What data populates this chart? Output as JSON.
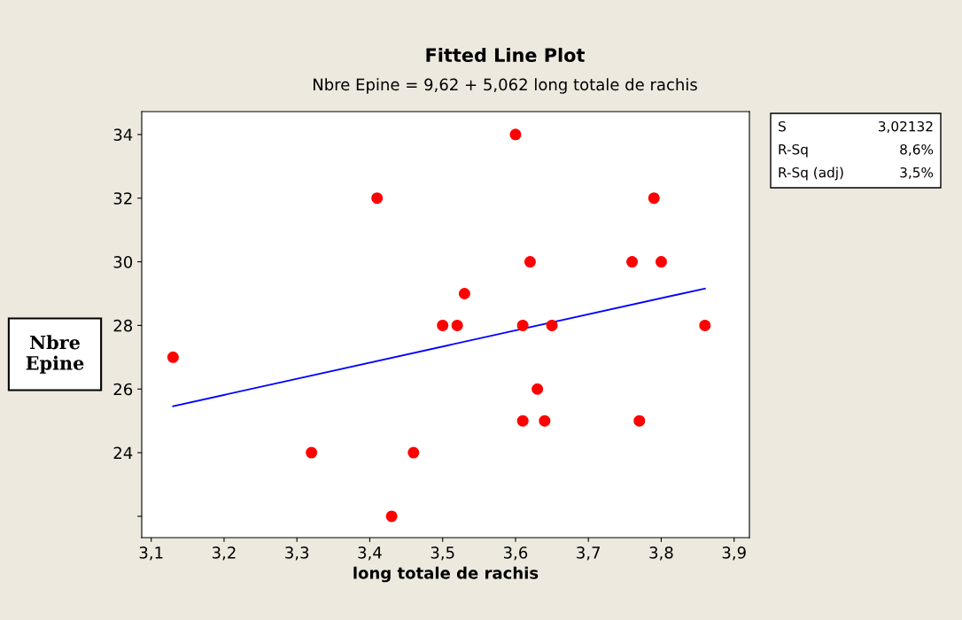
{
  "chart_data": {
    "type": "scatter",
    "title": "Fitted Line Plot",
    "subtitle": "Nbre Epine = 9,62 + 5,062 long totale de rachis",
    "xlabel": "long totale de rachis",
    "ylabel": "Nbre\nEpine",
    "xlim": [
      3.087,
      3.921
    ],
    "ylim": [
      21.33,
      34.72
    ],
    "xticks": [
      {
        "value": 3.1,
        "label": "3,1"
      },
      {
        "value": 3.2,
        "label": "3,2"
      },
      {
        "value": 3.3,
        "label": "3,3"
      },
      {
        "value": 3.4,
        "label": "3,4"
      },
      {
        "value": 3.5,
        "label": "3,5"
      },
      {
        "value": 3.6,
        "label": "3,6"
      },
      {
        "value": 3.7,
        "label": "3,7"
      },
      {
        "value": 3.8,
        "label": "3,8"
      },
      {
        "value": 3.9,
        "label": "3,9"
      }
    ],
    "yticks": [
      {
        "value": 22,
        "label": null
      },
      24,
      26,
      28,
      30,
      32,
      34
    ],
    "grid": false,
    "legend": false,
    "marker": "circle",
    "series": [
      {
        "color": "#ff0000",
        "x": [
          3.13,
          3.32,
          3.41,
          3.43,
          3.46,
          3.5,
          3.52,
          3.53,
          3.6,
          3.61,
          3.61,
          3.62,
          3.63,
          3.64,
          3.65,
          3.76,
          3.77,
          3.79,
          3.8,
          3.86
        ],
        "values": [
          27,
          24,
          32,
          22,
          24,
          28,
          28,
          29,
          34,
          28,
          25,
          30,
          26,
          25,
          28,
          30,
          25,
          32,
          30,
          28
        ]
      },
      {
        "type": "line",
        "color": "#0000ff",
        "marker": "none",
        "line_style": "solid",
        "x": [
          3.13,
          3.86
        ],
        "values": [
          25.46,
          29.16
        ]
      }
    ],
    "annotations": [
      "S",
      "3,02132",
      "R-Sq",
      "8,6%",
      "R-Sq (adj)",
      "3,5%"
    ]
  }
}
